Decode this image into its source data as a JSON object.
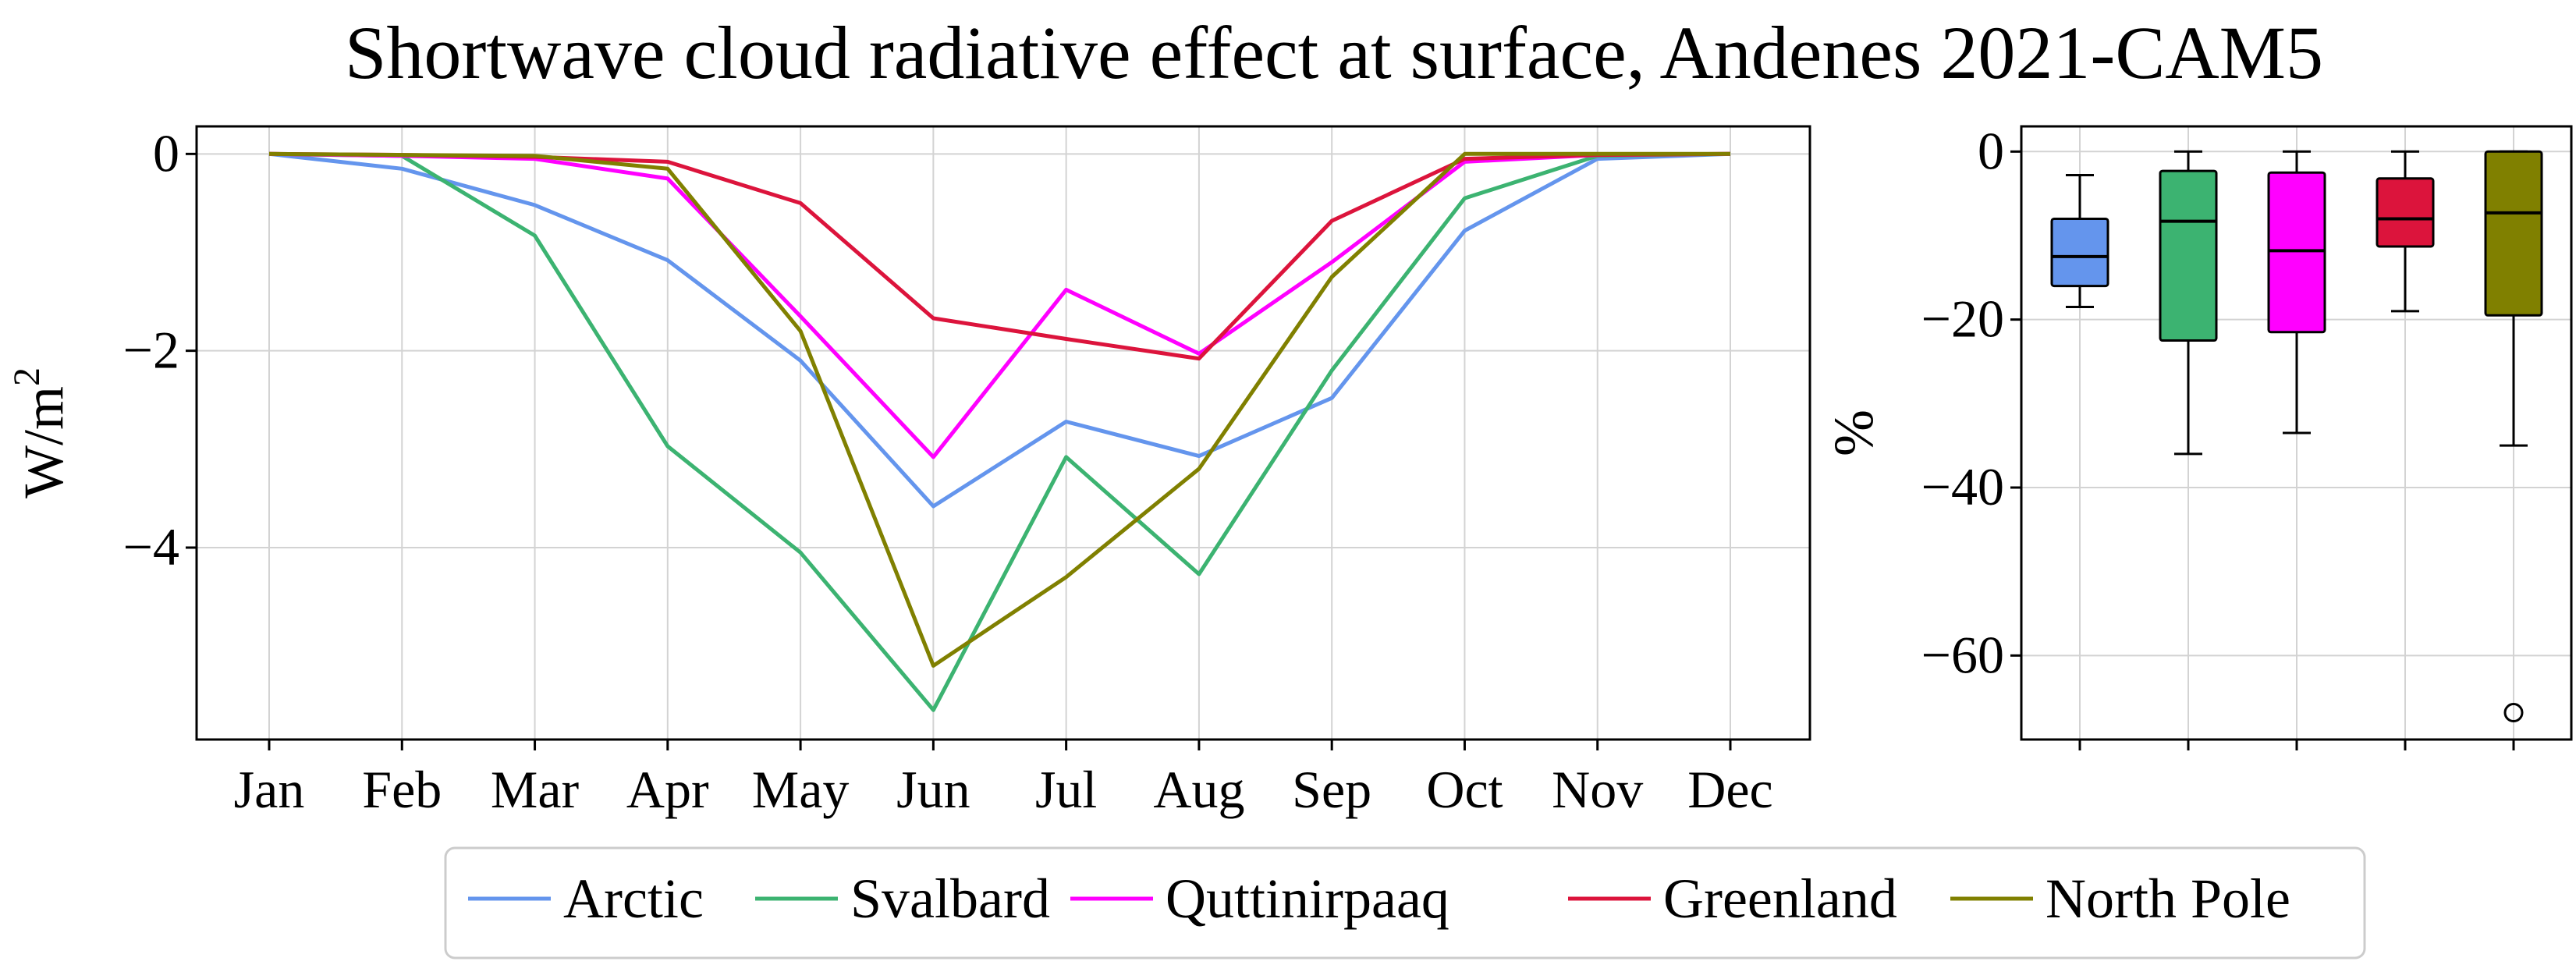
{
  "title": "Shortwave cloud radiative effect at surface, Andenes 2021-CAM5",
  "chart_data": [
    {
      "type": "line",
      "categories": [
        "Jan",
        "Feb",
        "Mar",
        "Apr",
        "May",
        "Jun",
        "Jul",
        "Aug",
        "Sep",
        "Oct",
        "Nov",
        "Dec"
      ],
      "ylabel": "W/m",
      "ylabel_sup": "2",
      "ylim": [
        -5.95,
        0.28
      ],
      "yticks": [
        0,
        -2,
        -4
      ],
      "ytick_labels": [
        "0",
        "−2",
        "−4"
      ],
      "grid": true,
      "series": [
        {
          "name": "Arctic",
          "color": "#6495ED",
          "values": [
            0,
            -0.15,
            -0.52,
            -1.08,
            -2.1,
            -3.58,
            -2.72,
            -3.07,
            -2.48,
            -0.78,
            -0.05,
            0
          ]
        },
        {
          "name": "Svalbard",
          "color": "#3CB371",
          "values": [
            0,
            -0.02,
            -0.83,
            -2.97,
            -4.05,
            -5.65,
            -3.08,
            -4.27,
            -2.2,
            -0.45,
            -0.02,
            0
          ]
        },
        {
          "name": "Quttinirpaaq",
          "color": "#FF00FF",
          "values": [
            0,
            -0.02,
            -0.05,
            -0.25,
            -1.65,
            -3.08,
            -1.38,
            -2.03,
            -1.1,
            -0.08,
            -0.01,
            0
          ]
        },
        {
          "name": "Greenland",
          "color": "#DC143C",
          "values": [
            0,
            -0.01,
            -0.03,
            -0.08,
            -0.5,
            -1.67,
            -1.88,
            -2.08,
            -0.68,
            -0.05,
            -0.01,
            0
          ]
        },
        {
          "name": "North Pole",
          "color": "#808000",
          "values": [
            0,
            -0.01,
            -0.02,
            -0.15,
            -1.8,
            -5.2,
            -4.3,
            -3.2,
            -1.25,
            0,
            0,
            0
          ]
        }
      ]
    },
    {
      "type": "box",
      "ylabel": "%",
      "ylim": [
        -70,
        3
      ],
      "yticks": [
        0,
        -20,
        -40,
        -60
      ],
      "ytick_labels": [
        "0",
        "−20",
        "−40",
        "−60"
      ],
      "grid": true,
      "boxes": [
        {
          "series": "Arctic",
          "color": "#6495ED",
          "whisker_low": -18.5,
          "q1": -16,
          "median": -12.5,
          "q3": -8,
          "whisker_high": -2.8,
          "outliers": []
        },
        {
          "series": "Svalbard",
          "color": "#3CB371",
          "whisker_low": -36,
          "q1": -22.5,
          "median": -8.3,
          "q3": -2.3,
          "whisker_high": 0,
          "outliers": []
        },
        {
          "series": "Quttinirpaaq",
          "color": "#FF00FF",
          "whisker_low": -33.5,
          "q1": -21.5,
          "median": -11.8,
          "q3": -2.5,
          "whisker_high": 0,
          "outliers": []
        },
        {
          "series": "Greenland",
          "color": "#DC143C",
          "whisker_low": -19,
          "q1": -11.3,
          "median": -8,
          "q3": -3.2,
          "whisker_high": 0,
          "outliers": []
        },
        {
          "series": "North Pole",
          "color": "#808000",
          "whisker_low": -35,
          "q1": -19.5,
          "median": -7.3,
          "q3": 0,
          "whisker_high": 0,
          "outliers": [
            -66.8
          ]
        }
      ]
    }
  ],
  "legend": {
    "placement": "bottom-center",
    "entries": [
      "Arctic",
      "Svalbard",
      "Quttinirpaaq",
      "Greenland",
      "North Pole"
    ]
  }
}
